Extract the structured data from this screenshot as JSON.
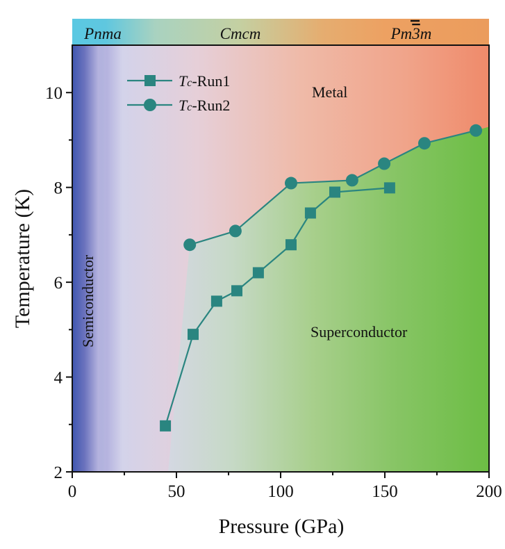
{
  "chart_data": {
    "type": "line",
    "title": "",
    "xlabel": "Pressure (GPa)",
    "ylabel": "Temperature (K)",
    "xlim": [
      0,
      200
    ],
    "ylim": [
      2,
      11
    ],
    "x_ticks": [
      0,
      50,
      100,
      150,
      200
    ],
    "x_minor_ticks": [
      25,
      75,
      125,
      175
    ],
    "y_ticks": [
      2,
      4,
      6,
      8,
      10
    ],
    "y_minor_ticks": [
      3,
      5,
      7,
      9
    ],
    "grid": false,
    "legend_position": "top-left",
    "series": [
      {
        "name": "Tc-Run1",
        "name_italic": "T",
        "name_sub": "c",
        "name_rest": "-Run1",
        "marker": "square",
        "color": "#2a8580",
        "x": [
          44.7,
          58,
          69.3,
          79,
          89.3,
          105,
          114.3,
          126,
          152.3
        ],
        "y": [
          2.97,
          4.9,
          5.6,
          5.82,
          6.2,
          6.79,
          7.46,
          7.9,
          7.99
        ]
      },
      {
        "name": "Tc-Run2",
        "name_italic": "T",
        "name_sub": "c",
        "name_rest": "-Run2",
        "marker": "circle",
        "color": "#2a8580",
        "x": [
          56.4,
          78.3,
          105,
          134.3,
          149.7,
          169,
          193.7
        ],
        "y": [
          6.79,
          7.08,
          8.09,
          8.15,
          8.5,
          8.93,
          9.2
        ]
      }
    ],
    "phases": [
      {
        "label": "Pnma",
        "bar": false,
        "range": [
          0,
          30
        ]
      },
      {
        "label": "Cmcm",
        "bar": false,
        "range": [
          30,
          130
        ]
      },
      {
        "label": "Pm3m",
        "prefix": "Pm",
        "barred": "3",
        "suffix": "m",
        "bar": true,
        "range": [
          130,
          200
        ]
      }
    ],
    "regions": [
      {
        "label": "Semiconductor",
        "orientation": "vertical"
      },
      {
        "label": "Metal"
      },
      {
        "label": "Superconductor"
      }
    ],
    "colors": {
      "semiconductor": "#3f56b0",
      "metal": "#f08c6c",
      "superconductor": "#70bd48",
      "phase_bar_left": "#5ac8e2",
      "phase_bar_mid": "#c4d0a2",
      "phase_bar_right": "#eda162"
    }
  }
}
